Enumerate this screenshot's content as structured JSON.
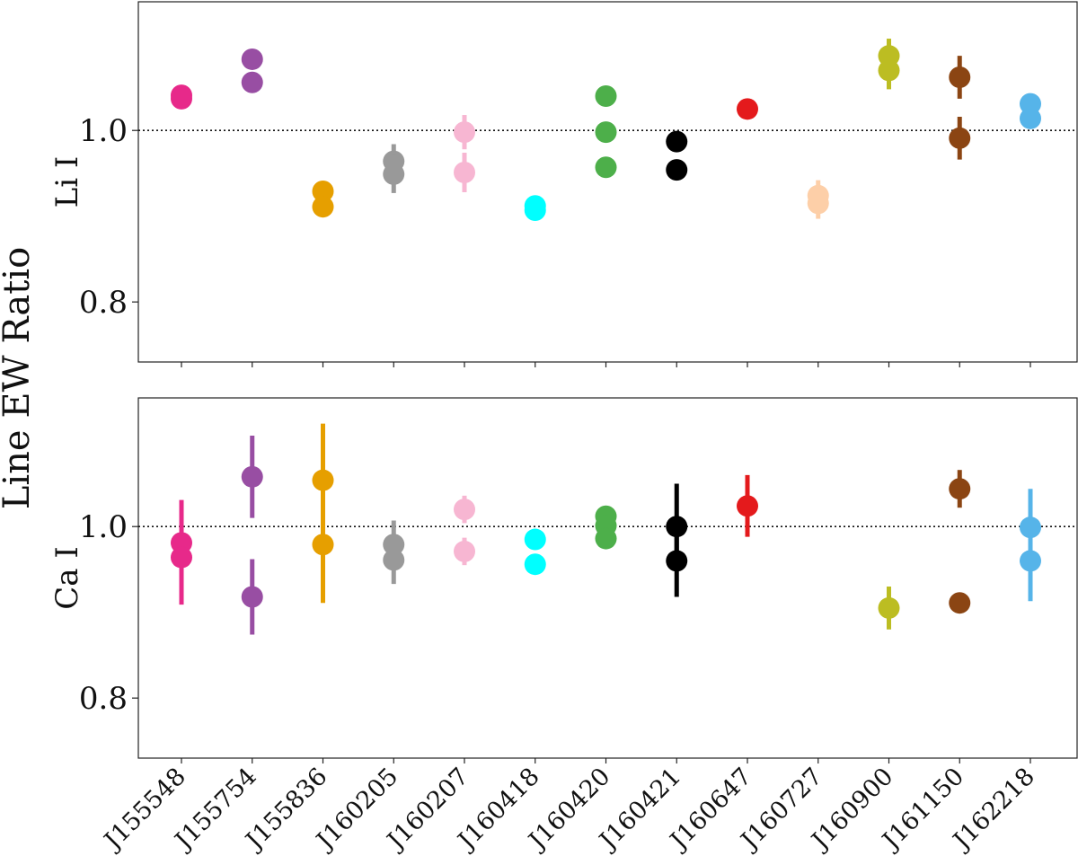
{
  "chart_data": {
    "type": "scatter",
    "ylabel": "Line EW Ratio",
    "ylim": [
      0.73,
      1.15
    ],
    "yticks": [
      0.8,
      1.0
    ],
    "ytick_labels": [
      "0.8",
      "1.0"
    ],
    "reference_line": 1.0,
    "categories": [
      "J155548",
      "J155754",
      "J155836",
      "J160205",
      "J160207",
      "J160418",
      "J160420",
      "J160421",
      "J160647",
      "J160727",
      "J160900",
      "J161150",
      "J162218"
    ],
    "colors": [
      "#e7298a",
      "#984ea3",
      "#e69f00",
      "#999999",
      "#f7b6d2",
      "#00ffff",
      "#4daf4a",
      "#000000",
      "#e41a1c",
      "#fdcfa8",
      "#bcbd22",
      "#8b4513",
      "#56b4e9"
    ],
    "panels": [
      {
        "label": "Li I",
        "points": [
          {
            "cat": 0,
            "y": 1.041,
            "err": 0.004
          },
          {
            "cat": 0,
            "y": 1.037,
            "err": 0.004
          },
          {
            "cat": 1,
            "y": 1.083,
            "err": 0.005
          },
          {
            "cat": 1,
            "y": 1.056,
            "err": 0.005
          },
          {
            "cat": 2,
            "y": 0.929,
            "err": 0.004
          },
          {
            "cat": 2,
            "y": 0.911,
            "err": 0.004
          },
          {
            "cat": 3,
            "y": 0.964,
            "err": 0.02
          },
          {
            "cat": 3,
            "y": 0.949,
            "err": 0.022
          },
          {
            "cat": 4,
            "y": 0.998,
            "err": 0.02
          },
          {
            "cat": 4,
            "y": 0.951,
            "err": 0.023
          },
          {
            "cat": 5,
            "y": 0.912,
            "err": 0.012
          },
          {
            "cat": 5,
            "y": 0.907,
            "err": 0.012
          },
          {
            "cat": 6,
            "y": 1.04,
            "err": 0.004
          },
          {
            "cat": 6,
            "y": 0.998,
            "err": 0.004
          },
          {
            "cat": 6,
            "y": 0.957,
            "err": 0.004
          },
          {
            "cat": 7,
            "y": 0.987,
            "err": 0.004
          },
          {
            "cat": 7,
            "y": 0.954,
            "err": 0.004
          },
          {
            "cat": 8,
            "y": 1.025,
            "err": 0.004
          },
          {
            "cat": 9,
            "y": 0.924,
            "err": 0.018
          },
          {
            "cat": 9,
            "y": 0.915,
            "err": 0.018
          },
          {
            "cat": 10,
            "y": 1.087,
            "err": 0.02
          },
          {
            "cat": 10,
            "y": 1.07,
            "err": 0.022
          },
          {
            "cat": 11,
            "y": 1.062,
            "err": 0.025
          },
          {
            "cat": 11,
            "y": 0.991,
            "err": 0.025
          },
          {
            "cat": 12,
            "y": 1.031,
            "err": 0.005
          },
          {
            "cat": 12,
            "y": 1.014,
            "err": 0.005
          }
        ]
      },
      {
        "label": "Ca I",
        "points": [
          {
            "cat": 0,
            "y": 0.981,
            "err": 0.05
          },
          {
            "cat": 0,
            "y": 0.964,
            "err": 0.055
          },
          {
            "cat": 1,
            "y": 1.058,
            "err": 0.048
          },
          {
            "cat": 1,
            "y": 0.918,
            "err": 0.044
          },
          {
            "cat": 2,
            "y": 1.054,
            "err": 0.066
          },
          {
            "cat": 2,
            "y": 0.979,
            "err": 0.068
          },
          {
            "cat": 3,
            "y": 0.979,
            "err": 0.028
          },
          {
            "cat": 3,
            "y": 0.961,
            "err": 0.028
          },
          {
            "cat": 4,
            "y": 1.02,
            "err": 0.016
          },
          {
            "cat": 4,
            "y": 0.971,
            "err": 0.016
          },
          {
            "cat": 5,
            "y": 0.985,
            "err": 0.004
          },
          {
            "cat": 5,
            "y": 0.956,
            "err": 0.004
          },
          {
            "cat": 6,
            "y": 1.012,
            "err": 0.004
          },
          {
            "cat": 6,
            "y": 1.001,
            "err": 0.004
          },
          {
            "cat": 6,
            "y": 0.986,
            "err": 0.004
          },
          {
            "cat": 7,
            "y": 1.0,
            "err": 0.05
          },
          {
            "cat": 7,
            "y": 0.96,
            "err": 0.042
          },
          {
            "cat": 8,
            "y": 1.024,
            "err": 0.036
          },
          {
            "cat": 10,
            "y": 0.905,
            "err": 0.025
          },
          {
            "cat": 11,
            "y": 1.044,
            "err": 0.022
          },
          {
            "cat": 11,
            "y": 0.911,
            "err": 0.008
          },
          {
            "cat": 12,
            "y": 0.999,
            "err": 0.045
          },
          {
            "cat": 12,
            "y": 0.96,
            "err": 0.047
          }
        ]
      }
    ]
  }
}
